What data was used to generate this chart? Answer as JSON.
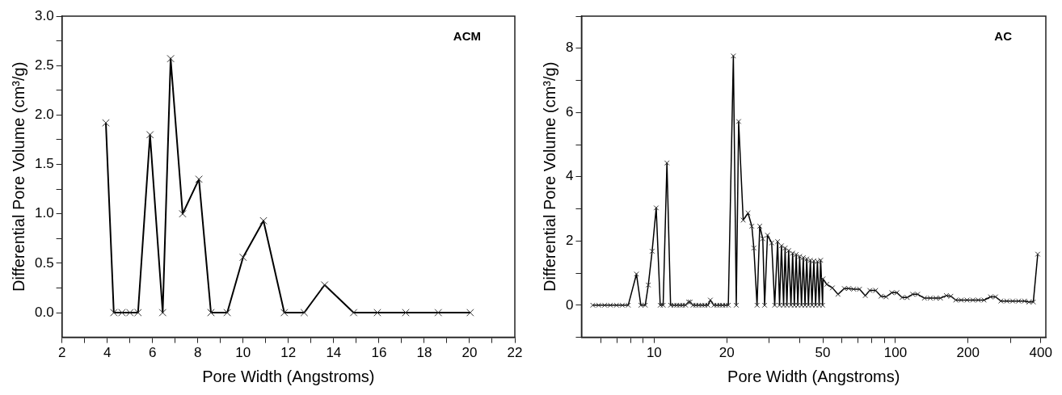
{
  "chart_data": [
    {
      "type": "line",
      "xlabel": "Pore Width (Angstroms)",
      "ylabel": "Differential Pore Volume (cm³/g)",
      "annotations": [
        "ACM"
      ],
      "marker": "cross",
      "line_style": "solid",
      "grid": false,
      "legend": false,
      "xlim": [
        2,
        22
      ],
      "xticks": [
        2,
        {
          "value": 3,
          "label": null
        },
        4,
        {
          "value": 5,
          "label": null
        },
        6,
        {
          "value": 7,
          "label": null
        },
        8,
        {
          "value": 9,
          "label": null
        },
        10,
        {
          "value": 11,
          "label": null
        },
        12,
        {
          "value": 13,
          "label": null
        },
        14,
        {
          "value": 15,
          "label": null
        },
        16,
        {
          "value": 17,
          "label": null
        },
        18,
        {
          "value": 19,
          "label": null
        },
        20,
        {
          "value": 21,
          "label": null
        },
        22
      ],
      "ylim": [
        -0.25,
        3.0
      ],
      "yticks": [
        {
          "value": 0,
          "label": "0.0"
        },
        {
          "value": 0.25,
          "label": null
        },
        0.5,
        {
          "value": 0.75,
          "label": null
        },
        {
          "value": 1,
          "label": "1.0"
        },
        {
          "value": 1.25,
          "label": null
        },
        1.5,
        {
          "value": 1.75,
          "label": null
        },
        {
          "value": 2,
          "label": "2.0"
        },
        {
          "value": 2.25,
          "label": null
        },
        2.5,
        {
          "value": 2.75,
          "label": null
        },
        {
          "value": 3,
          "label": "3.0"
        }
      ],
      "series": [
        {
          "color": "#000000",
          "x": [
            3.94,
            4.29,
            4.65,
            5.0,
            5.36,
            5.89,
            6.45,
            6.8,
            7.33,
            8.05,
            8.58,
            9.3,
            10.0,
            10.9,
            11.82,
            12.7,
            13.6,
            14.88,
            15.93,
            17.18,
            18.62,
            20.03
          ],
          "values": [
            1.92,
            0,
            0,
            0,
            0,
            1.8,
            0,
            2.57,
            1.0,
            1.35,
            0,
            0,
            0.56,
            0.93,
            0,
            0,
            0.28,
            0,
            0,
            0,
            0,
            0
          ]
        }
      ]
    },
    {
      "type": "line",
      "xlabel": "Pore Width (Angstroms)",
      "ylabel": "Differential Pore Volume (cm³/g)",
      "annotations": [
        "AC"
      ],
      "marker": "cross",
      "line_style": "solid",
      "grid": false,
      "legend": false,
      "log": "x",
      "xlim": [
        5,
        420
      ],
      "xticks": [
        {
          "value": 6,
          "label": null
        },
        {
          "value": 7,
          "label": null
        },
        {
          "value": 8,
          "label": null
        },
        {
          "value": 9,
          "label": null
        },
        10,
        20,
        {
          "value": 30,
          "label": null
        },
        {
          "value": 40,
          "label": null
        },
        50,
        {
          "value": 60,
          "label": null
        },
        {
          "value": 70,
          "label": null
        },
        {
          "value": 80,
          "label": null
        },
        {
          "value": 90,
          "label": null
        },
        100,
        200,
        {
          "value": 300,
          "label": null
        },
        400
      ],
      "ylim": [
        -1,
        9
      ],
      "yticks": [
        {
          "value": -1,
          "label": null
        },
        0,
        {
          "value": 1,
          "label": null
        },
        2,
        {
          "value": 3,
          "label": null
        },
        4,
        {
          "value": 5,
          "label": null
        },
        6,
        {
          "value": 7,
          "label": null
        },
        8,
        {
          "value": 9,
          "label": null
        }
      ],
      "series": [
        {
          "color": "#000000",
          "x": [
            5.57,
            5.89,
            6.24,
            6.59,
            6.98,
            7.38,
            7.81,
            8.45,
            8.81,
            9.19,
            9.46,
            9.81,
            10.2,
            10.6,
            10.9,
            11.3,
            11.7,
            12.1,
            12.4,
            12.8,
            13.1,
            13.5,
            13.9,
            14.1,
            14.5,
            14.9,
            15.3,
            15.8,
            16.2,
            16.7,
            17.1,
            17.7,
            18.2,
            18.7,
            19.2,
            19.8,
            20.3,
            21.3,
            21.9,
            22.4,
            23.4,
            24.5,
            25.4,
            25.9,
            26.7,
            27.4,
            28.2,
            28.7,
            29.5,
            30.7,
            31.6,
            32.5,
            33.1,
            33.7,
            34.4,
            34.9,
            35.5,
            36.1,
            36.9,
            37.5,
            38.1,
            38.8,
            39.4,
            40.1,
            40.8,
            41.5,
            42.2,
            42.9,
            43.6,
            44.4,
            45.1,
            45.9,
            46.7,
            47.5,
            48.3,
            49.0,
            49.9,
            50.1,
            51.9,
            54.8,
            57.8,
            61.4,
            64.0,
            67.1,
            71.0,
            75.0,
            78.3,
            82.8,
            87.1,
            91.4,
            96.6,
            101.4,
            106.6,
            111.9,
            117.8,
            123.6,
            131.8,
            139.4,
            147.3,
            153.7,
            162.6,
            169.7,
            177.9,
            187.2,
            198.0,
            209.5,
            220.3,
            232.9,
            247.8,
            260.0,
            273.4,
            289.4,
            306.2,
            323.9,
            342.6,
            357.6,
            372.7,
            388.8
          ],
          "values": [
            0,
            0,
            0,
            0,
            0,
            0,
            0,
            0.97,
            0,
            0,
            0.63,
            1.68,
            3.03,
            0,
            0,
            4.43,
            0,
            0,
            0,
            0,
            0,
            0,
            0.1,
            0.1,
            0,
            0,
            0,
            0,
            0,
            0,
            0.16,
            0,
            0,
            0,
            0,
            0,
            0,
            7.76,
            0,
            5.72,
            2.65,
            2.87,
            2.46,
            1.78,
            0,
            2.46,
            2.07,
            0,
            2.18,
            1.94,
            0,
            1.98,
            0,
            1.85,
            0,
            1.78,
            0,
            1.7,
            0,
            1.62,
            0,
            1.58,
            0,
            1.52,
            0,
            1.48,
            0,
            1.44,
            0,
            1.4,
            0,
            1.38,
            0,
            1.36,
            0,
            1.4,
            0,
            0.82,
            0.65,
            0.54,
            0.34,
            0.52,
            0.52,
            0.5,
            0.5,
            0.3,
            0.46,
            0.46,
            0.28,
            0.26,
            0.39,
            0.39,
            0.24,
            0.24,
            0.34,
            0.34,
            0.22,
            0.22,
            0.22,
            0.22,
            0.3,
            0.28,
            0.16,
            0.16,
            0.16,
            0.16,
            0.16,
            0.16,
            0.26,
            0.26,
            0.13,
            0.13,
            0.13,
            0.13,
            0.13,
            0.1,
            0.1,
            1.59
          ]
        }
      ]
    }
  ]
}
